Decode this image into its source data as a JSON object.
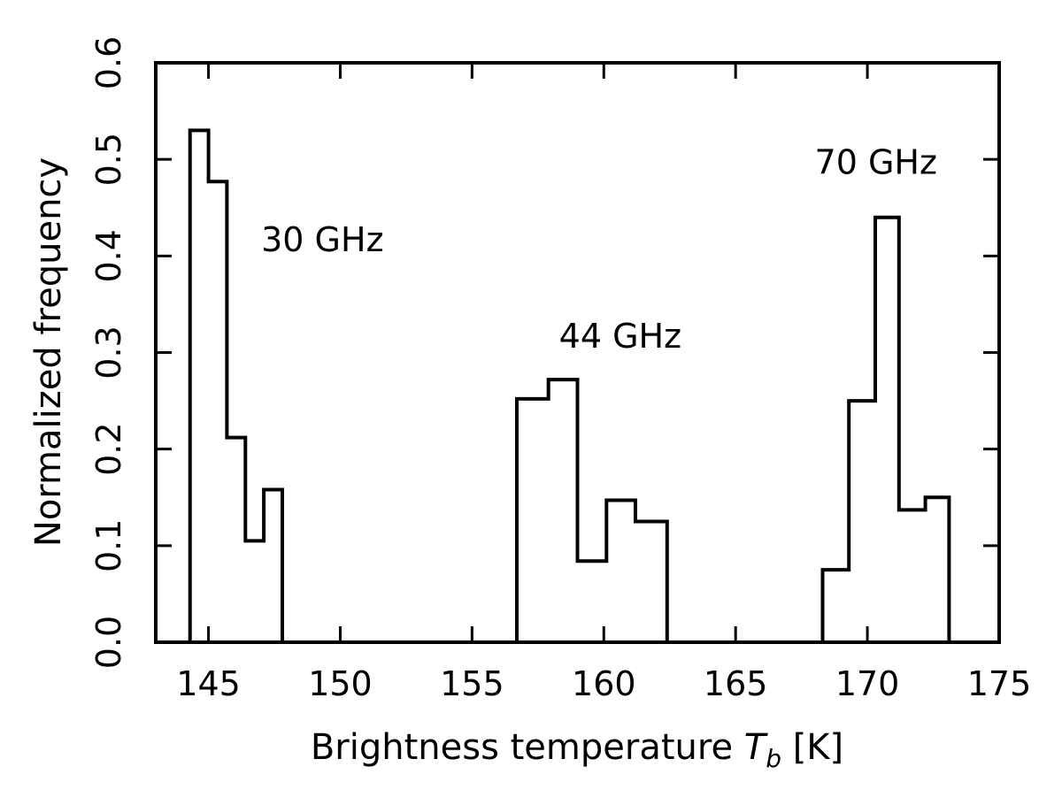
{
  "chart_data": {
    "type": "histogram",
    "xlabel_prefix": "Brightness temperature ",
    "xlabel_symbol": "T",
    "xlabel_subscript": "b",
    "xlabel_suffix": " [K]",
    "ylabel": "Normalized frequency",
    "xlim": [
      143,
      175
    ],
    "ylim": [
      0.0,
      0.6
    ],
    "x_ticks": [
      145,
      150,
      155,
      160,
      165,
      170,
      175
    ],
    "y_ticks": [
      0.0,
      0.1,
      0.2,
      0.3,
      0.4,
      0.5,
      0.6
    ],
    "y_tick_labels": [
      "0.0",
      "0.1",
      "0.2",
      "0.3",
      "0.4",
      "0.5",
      "0.6"
    ],
    "grid": false,
    "legend": "none",
    "line_color": "#000000",
    "series": [
      {
        "annotation": "30 GHz",
        "bin_edges": [
          144.3,
          145.0,
          145.7,
          146.4,
          147.1,
          147.8
        ],
        "values": [
          0.53,
          0.477,
          0.212,
          0.105,
          0.158
        ]
      },
      {
        "annotation": "44 GHz",
        "bin_edges": [
          156.7,
          157.9,
          159.0,
          160.1,
          161.2,
          162.4
        ],
        "values": [
          0.252,
          0.272,
          0.084,
          0.147,
          0.125
        ]
      },
      {
        "annotation": "70 GHz",
        "bin_edges": [
          168.3,
          169.3,
          170.3,
          171.2,
          172.2,
          173.1
        ],
        "values": [
          0.075,
          0.25,
          0.44,
          0.137,
          0.15
        ]
      }
    ],
    "annotation_positions": [
      {
        "x": 147.0,
        "y": 0.405
      },
      {
        "x": 158.3,
        "y": 0.305
      },
      {
        "x": 168.0,
        "y": 0.485
      }
    ]
  }
}
